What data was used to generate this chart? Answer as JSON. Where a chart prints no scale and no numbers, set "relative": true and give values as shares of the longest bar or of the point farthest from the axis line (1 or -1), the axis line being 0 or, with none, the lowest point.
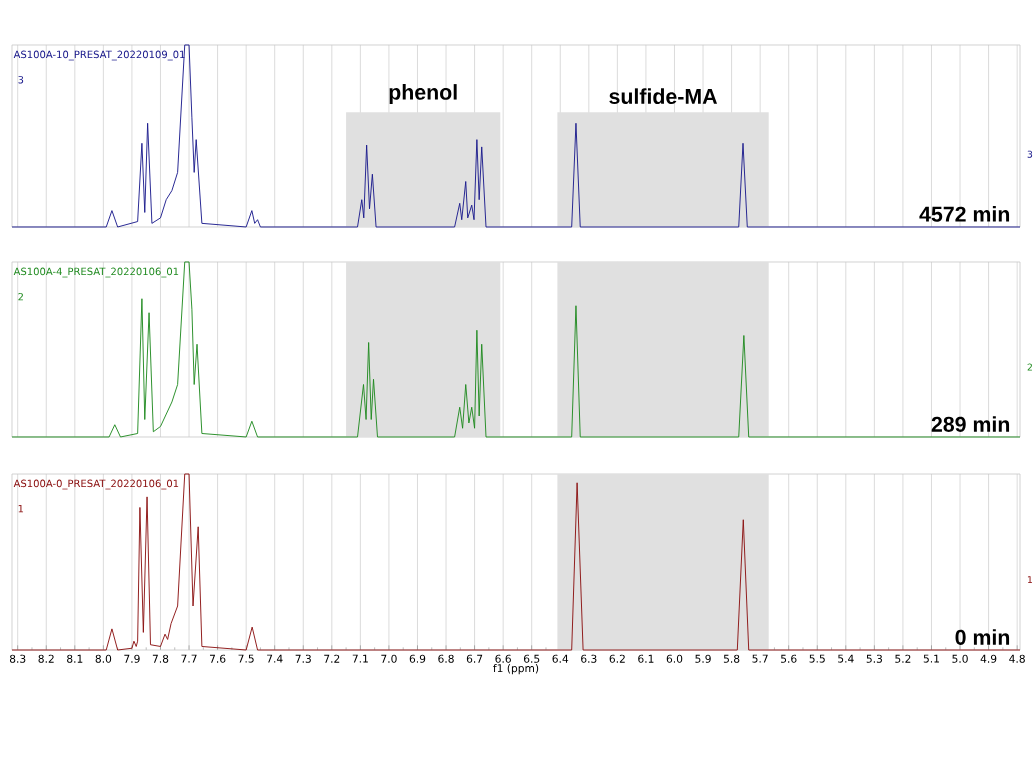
{
  "chart_data": [
    {
      "type": "line",
      "relative": true,
      "xlim": [
        8.32,
        4.79
      ],
      "xticks": [
        8.3,
        8.2,
        8.1,
        8,
        7.9,
        7.8,
        7.7,
        7.6,
        7.5,
        7.4,
        7.3,
        7.2,
        7.1,
        7,
        6.9,
        6.8,
        6.7,
        6.6,
        6.5,
        6.4,
        6.3,
        6.2,
        6.1,
        6,
        5.9,
        5.8,
        5.7,
        5.6,
        5.5,
        5.4,
        5.3,
        5.2,
        5.1,
        5,
        4.9,
        4.8
      ],
      "tick_labels": false,
      "grid": "x",
      "bands": [
        {
          "axis": "x",
          "from": 7.15,
          "to": 6.61,
          "label": "phenol",
          "color": "#e0e0e0"
        },
        {
          "axis": "x",
          "from": 6.41,
          "to": 5.67,
          "label": "sulfide-MA",
          "color": "#e0e0e0"
        }
      ],
      "annotations": [
        "AS100A-10_PRESAT_20220109_01",
        "3",
        "3",
        "4572 min"
      ],
      "series": [
        {
          "color": "#1a1a8c",
          "x": [
            8.32,
            7.99,
            7.97,
            7.95,
            7.88,
            7.865,
            7.855,
            7.845,
            7.83,
            7.8,
            7.78,
            7.76,
            7.74,
            7.715,
            7.7,
            7.69,
            7.682,
            7.675,
            7.655,
            7.5,
            7.48,
            7.47,
            7.46,
            7.45,
            7.11,
            7.095,
            7.088,
            7.078,
            7.068,
            7.058,
            7.045,
            6.77,
            6.752,
            6.745,
            6.731,
            6.724,
            6.71,
            6.702,
            6.692,
            6.684,
            6.675,
            6.66,
            6.36,
            6.345,
            6.33,
            5.775,
            5.76,
            5.745,
            4.79
          ],
          "values": [
            0,
            0,
            0.09,
            0,
            0.03,
            0.46,
            0.08,
            0.57,
            0.02,
            0.05,
            0.15,
            0.2,
            0.3,
            1,
            1,
            0.6,
            0.3,
            0.48,
            0.02,
            0,
            0.09,
            0.02,
            0.04,
            0,
            0,
            0.15,
            0.05,
            0.45,
            0.1,
            0.29,
            0,
            0,
            0.13,
            0.04,
            0.25,
            0.05,
            0.12,
            0.04,
            0.48,
            0.15,
            0.44,
            0,
            0,
            0.57,
            0,
            0,
            0.46,
            0,
            0
          ]
        }
      ]
    },
    {
      "type": "line",
      "relative": true,
      "xlim": [
        8.32,
        4.79
      ],
      "xticks": [
        8.3,
        8.2,
        8.1,
        8,
        7.9,
        7.8,
        7.7,
        7.6,
        7.5,
        7.4,
        7.3,
        7.2,
        7.1,
        7,
        6.9,
        6.8,
        6.7,
        6.6,
        6.5,
        6.4,
        6.3,
        6.2,
        6.1,
        6,
        5.9,
        5.8,
        5.7,
        5.6,
        5.5,
        5.4,
        5.3,
        5.2,
        5.1,
        5,
        4.9,
        4.8
      ],
      "tick_labels": false,
      "grid": "x",
      "bands": [
        {
          "axis": "x",
          "from": 7.15,
          "to": 6.61,
          "color": "#e0e0e0"
        },
        {
          "axis": "x",
          "from": 6.41,
          "to": 5.67,
          "color": "#e0e0e0"
        }
      ],
      "annotations": [
        "AS100A-4_PRESAT_20220106_01",
        "2",
        "2",
        "289 min"
      ],
      "series": [
        {
          "color": "#1f8a1f",
          "x": [
            8.32,
            7.98,
            7.96,
            7.94,
            7.88,
            7.865,
            7.855,
            7.84,
            7.825,
            7.8,
            7.78,
            7.76,
            7.74,
            7.715,
            7.7,
            7.69,
            7.682,
            7.672,
            7.655,
            7.5,
            7.48,
            7.46,
            7.11,
            7.089,
            7.08,
            7.071,
            7.062,
            7.054,
            7.04,
            6.77,
            6.752,
            6.742,
            6.731,
            6.72,
            6.71,
            6.7,
            6.692,
            6.684,
            6.675,
            6.66,
            6.36,
            6.345,
            6.33,
            5.775,
            5.757,
            5.74,
            4.79
          ],
          "values": [
            0,
            0,
            0.07,
            0,
            0.02,
            0.79,
            0.1,
            0.71,
            0.03,
            0.06,
            0.13,
            0.2,
            0.3,
            1,
            1,
            0.73,
            0.3,
            0.53,
            0.02,
            0,
            0.09,
            0,
            0,
            0.3,
            0.1,
            0.54,
            0.1,
            0.33,
            0,
            0,
            0.17,
            0.05,
            0.3,
            0.08,
            0.17,
            0.05,
            0.61,
            0.12,
            0.53,
            0,
            0,
            0.75,
            0,
            0,
            0.58,
            0,
            0
          ]
        }
      ]
    },
    {
      "type": "line",
      "relative": true,
      "xlim": [
        8.32,
        4.79
      ],
      "xticks": [
        8.3,
        8.2,
        8.1,
        {
          "value": 8,
          "label": "8.0"
        },
        7.9,
        7.8,
        7.7,
        7.6,
        7.5,
        7.4,
        7.3,
        7.2,
        7.1,
        {
          "value": 7,
          "label": "7.0"
        },
        6.9,
        6.8,
        6.7,
        6.6,
        6.5,
        6.4,
        6.3,
        6.2,
        6.1,
        {
          "value": 6,
          "label": "6.0"
        },
        5.9,
        5.8,
        5.7,
        5.6,
        5.5,
        5.4,
        5.3,
        5.2,
        5.1,
        {
          "value": 5,
          "label": "5.0"
        },
        4.9,
        4.8
      ],
      "tick_labels": "x",
      "grid": "x",
      "xlabel": "f1 (ppm)",
      "bands": [
        {
          "axis": "x",
          "from": 6.41,
          "to": 5.67,
          "color": "#e0e0e0"
        }
      ],
      "annotations": [
        "AS100A-0_PRESAT_20220106_01",
        "1",
        "1",
        "0 min"
      ],
      "series": [
        {
          "color": "#8b1010",
          "x": [
            8.32,
            7.99,
            7.97,
            7.95,
            7.9,
            7.893,
            7.885,
            7.88,
            7.872,
            7.86,
            7.847,
            7.835,
            7.8,
            7.784,
            7.775,
            7.763,
            7.74,
            7.715,
            7.7,
            7.686,
            7.668,
            7.655,
            7.5,
            7.479,
            7.46,
            6.36,
            6.341,
            6.32,
            5.78,
            5.759,
            5.74,
            4.79
          ],
          "values": [
            0,
            0,
            0.12,
            0,
            0.01,
            0.05,
            0.02,
            0.05,
            0.81,
            0.1,
            0.87,
            0.03,
            0.02,
            0.09,
            0.06,
            0.15,
            0.25,
            1,
            1,
            0.25,
            0.7,
            0.02,
            0,
            0.13,
            0,
            0,
            0.95,
            0,
            0,
            0.74,
            0,
            0
          ]
        }
      ]
    }
  ]
}
